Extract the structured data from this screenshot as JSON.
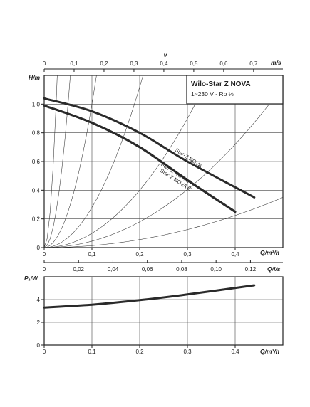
{
  "chart_data": [
    {
      "type": "line",
      "title": "Wilo-Star Z NOVA",
      "subtitle": "1~230 V - Rp ½",
      "xlabel": "Q/m³/h",
      "ylabel": "H/m",
      "xlim": [
        0,
        0.5
      ],
      "ylim": [
        0,
        1.2
      ],
      "xticks": [
        "0",
        "0,1",
        "0,2",
        "0,3",
        "0,4"
      ],
      "yticks": [
        "0",
        "0,2",
        "0,4",
        "0,6",
        "0,8",
        "1,0"
      ],
      "top_axis": {
        "label": "v",
        "unit": "m/s",
        "ticks": [
          "0",
          "0,1",
          "0,2",
          "0,3",
          "0,4",
          "0,5",
          "0,6",
          "0,7"
        ]
      },
      "grid": true,
      "series": [
        {
          "name": "Star-Z NOVA",
          "x": [
            0,
            0.1,
            0.2,
            0.3,
            0.44
          ],
          "y": [
            1.04,
            0.95,
            0.8,
            0.6,
            0.35
          ]
        },
        {
          "name": "Star-Z NOVA A",
          "x": [
            0,
            0.1,
            0.2,
            0.3,
            0.4
          ],
          "y": [
            0.99,
            0.87,
            0.7,
            0.47,
            0.25
          ]
        },
        {
          "name": "Star-Z NOVA C",
          "x": [
            0,
            0.1,
            0.2,
            0.3,
            0.4
          ],
          "y": [
            0.99,
            0.87,
            0.7,
            0.47,
            0.25
          ]
        }
      ],
      "system_curves_k": [
        1600,
        400,
        100,
        28,
        10,
        4.5,
        1.4
      ]
    },
    {
      "type": "line",
      "xlabel": "Q/l/s",
      "xlim": [
        0,
        0.1389
      ],
      "xticks": [
        "0",
        "0,02",
        "0,04",
        "0,06",
        "0,08",
        "0,10",
        "0,12"
      ]
    },
    {
      "type": "line",
      "xlabel": "Q/m³/h",
      "ylabel": "P₁/W",
      "xlim": [
        0,
        0.5
      ],
      "ylim": [
        0,
        6
      ],
      "xticks": [
        "0",
        "0,1",
        "0,2",
        "0,3",
        "0,4"
      ],
      "yticks": [
        "0",
        "2",
        "4"
      ],
      "grid": true,
      "series": [
        {
          "name": "",
          "x": [
            0,
            0.1,
            0.2,
            0.3,
            0.44
          ],
          "y": [
            3.3,
            3.55,
            3.95,
            4.45,
            5.25
          ]
        }
      ]
    }
  ]
}
